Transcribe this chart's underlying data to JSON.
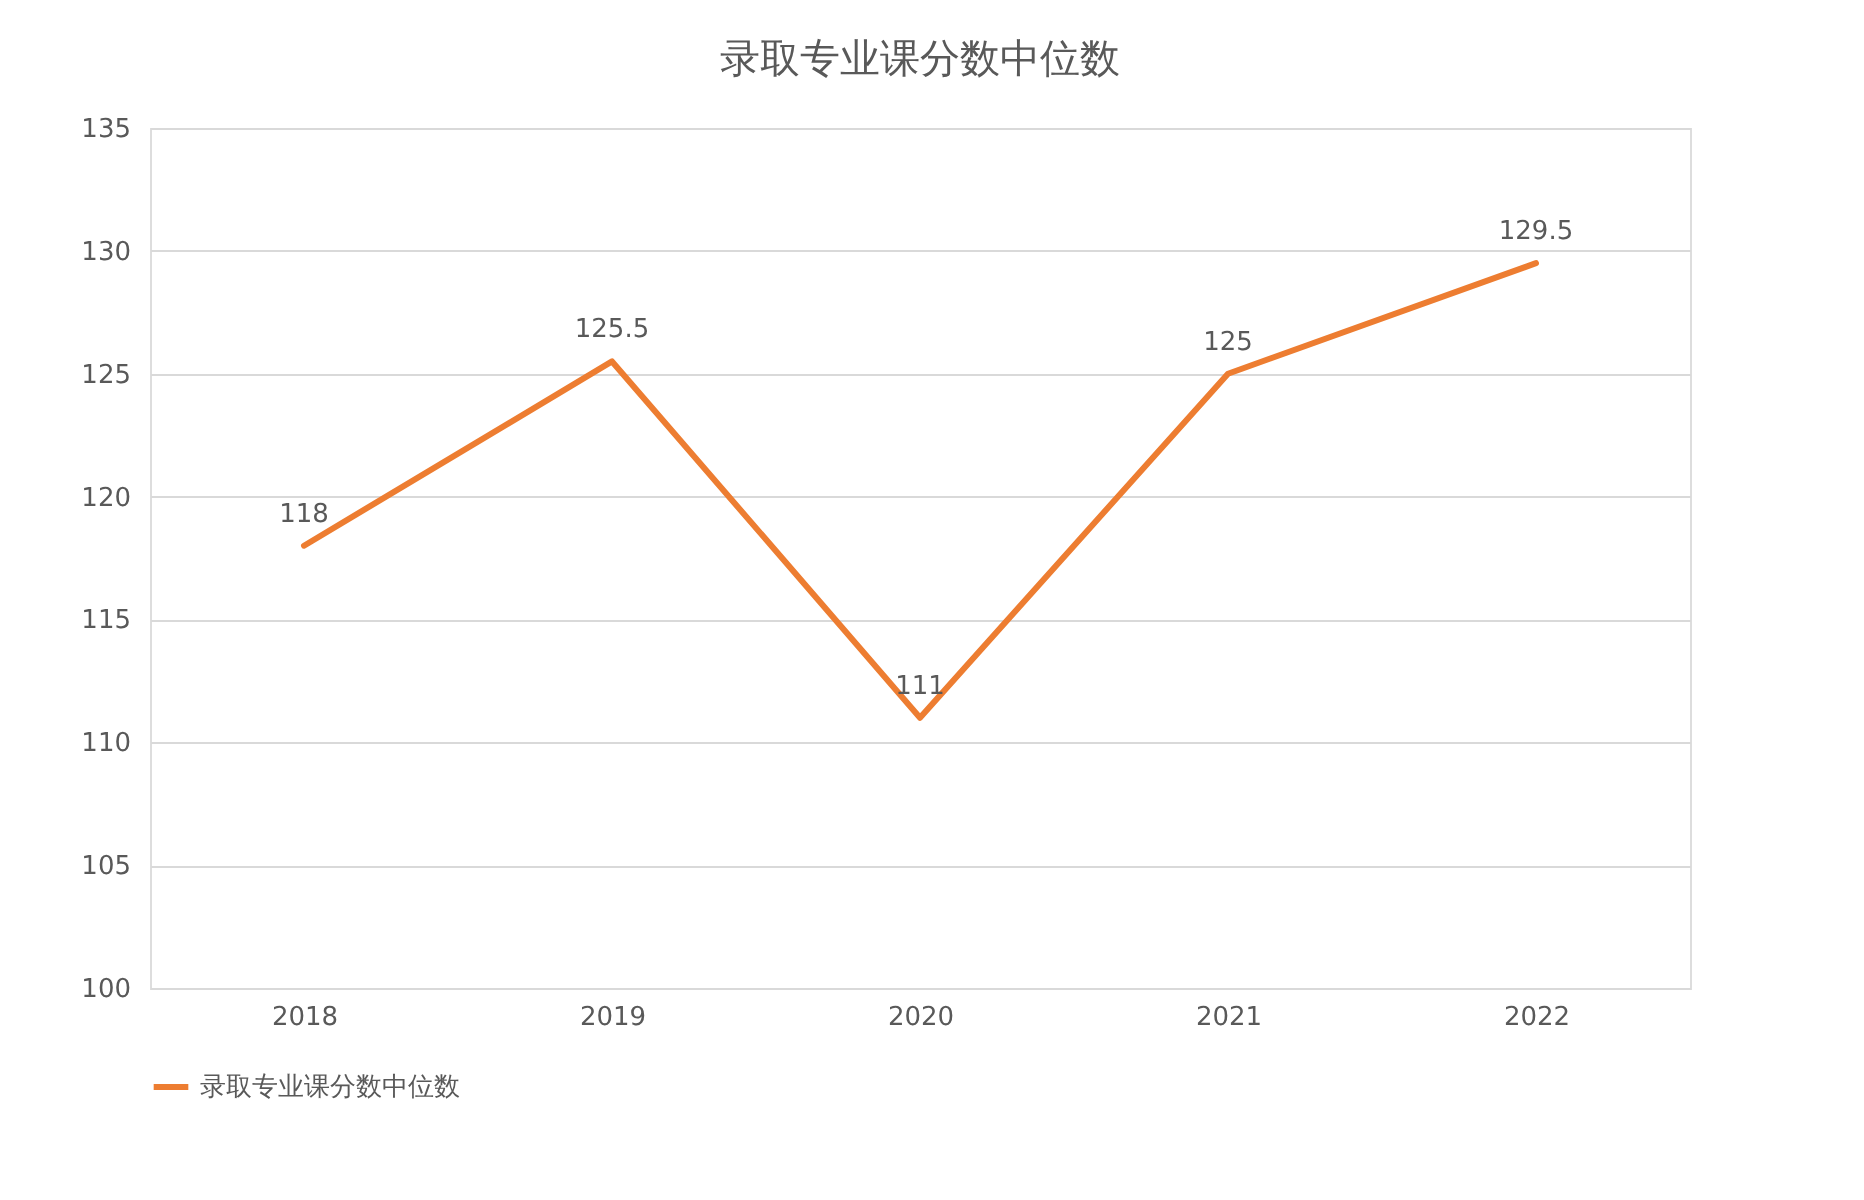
{
  "chart_data": {
    "type": "line",
    "title": "录取专业课分数中位数",
    "categories": [
      "2018",
      "2019",
      "2020",
      "2021",
      "2022"
    ],
    "series": [
      {
        "name": "录取专业课分数中位数",
        "color": "#ed7d31",
        "values": [
          118,
          125.5,
          111,
          125,
          129.5
        ]
      }
    ],
    "ylim": [
      100,
      135
    ],
    "yticks": [
      100,
      105,
      110,
      115,
      120,
      125,
      130,
      135
    ],
    "grid": "y",
    "legend": "bottom",
    "data_labels": true
  }
}
